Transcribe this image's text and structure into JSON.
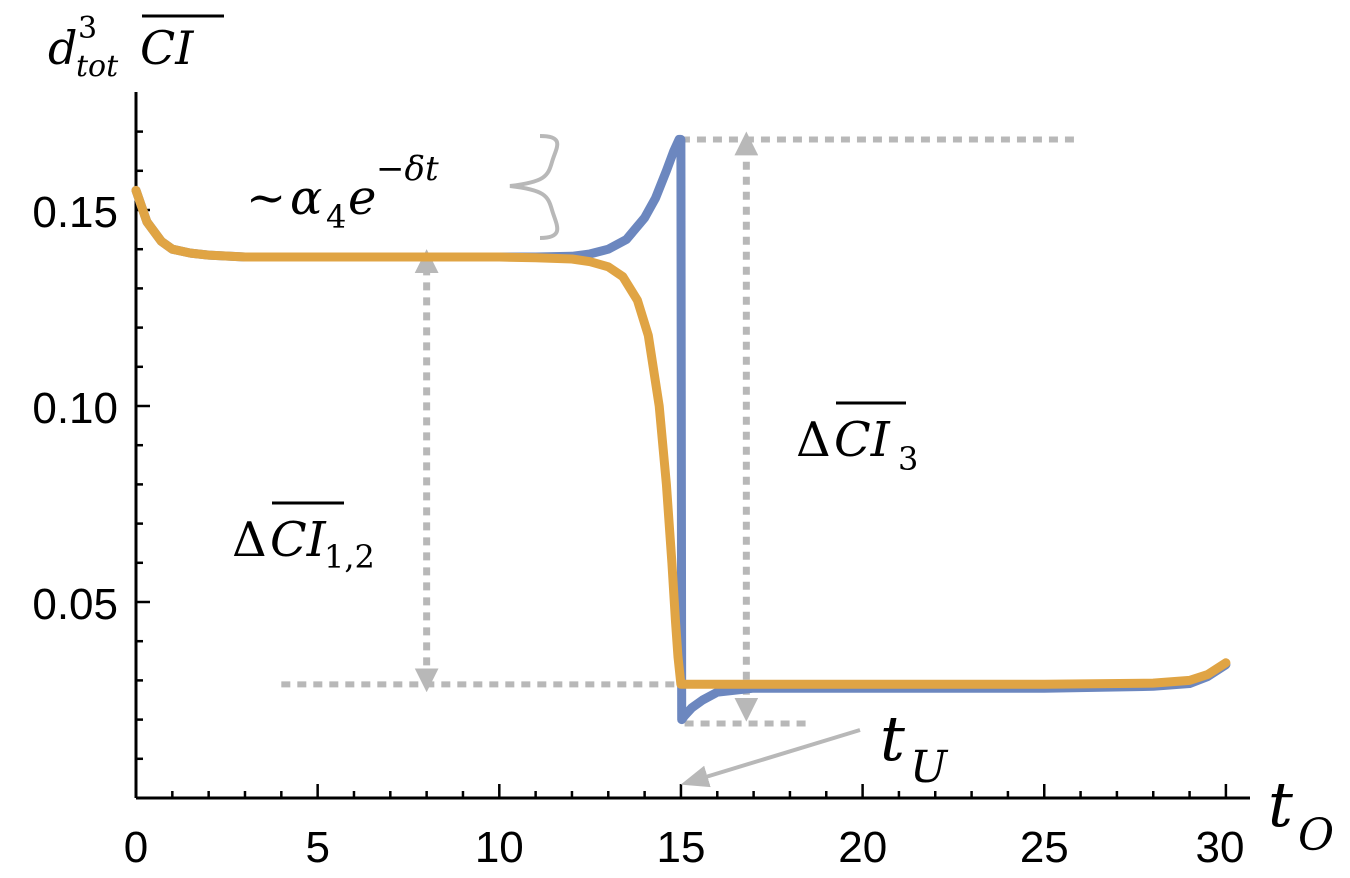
{
  "chart_data": {
    "type": "line",
    "title": "",
    "xlim": [
      0,
      30
    ],
    "ylim": [
      0,
      0.155
    ],
    "x_ticks": [
      "0",
      "5",
      "10",
      "15",
      "20",
      "25",
      "30"
    ],
    "y_ticks": [
      "0.05",
      "0.10",
      "0.15"
    ],
    "y_tick_values": [
      0.05,
      0.1,
      0.15
    ],
    "x_tick_values": [
      0,
      5,
      10,
      15,
      20,
      25,
      30
    ],
    "grid": false,
    "colors": {
      "blue": "#6c87bf",
      "orange": "#e0a444",
      "annotation": "#b8b8b8"
    },
    "series": [
      {
        "color": "blue",
        "x": [
          0,
          0.3,
          0.7,
          1,
          1.5,
          2,
          3,
          5,
          8,
          10,
          11,
          12,
          12.5,
          13,
          13.5,
          14,
          14.3,
          14.6,
          14.8,
          14.95,
          15.0,
          15.02,
          15.1,
          15.3,
          15.6,
          16,
          17,
          20,
          25,
          28,
          29,
          29.5,
          30
        ],
        "y": [
          0.155,
          0.147,
          0.142,
          0.14,
          0.139,
          0.1385,
          0.138,
          0.138,
          0.138,
          0.138,
          0.138,
          0.1382,
          0.1388,
          0.14,
          0.1425,
          0.148,
          0.153,
          0.16,
          0.165,
          0.168,
          0.168,
          0.02,
          0.021,
          0.023,
          0.025,
          0.027,
          0.028,
          0.028,
          0.028,
          0.0285,
          0.0292,
          0.031,
          0.034
        ]
      },
      {
        "color": "orange",
        "x": [
          0,
          0.3,
          0.7,
          1,
          1.5,
          2,
          3,
          5,
          8,
          10,
          11,
          12,
          12.5,
          13,
          13.4,
          13.8,
          14.1,
          14.4,
          14.6,
          14.75,
          14.85,
          14.92,
          15.0,
          15.5,
          17,
          20,
          25,
          28,
          29,
          29.5,
          30
        ],
        "y": [
          0.155,
          0.147,
          0.142,
          0.14,
          0.139,
          0.1385,
          0.138,
          0.138,
          0.138,
          0.138,
          0.1378,
          0.1375,
          0.1368,
          0.1355,
          0.133,
          0.127,
          0.118,
          0.1,
          0.08,
          0.06,
          0.045,
          0.036,
          0.029,
          0.029,
          0.029,
          0.029,
          0.029,
          0.0293,
          0.03,
          0.0315,
          0.0345
        ]
      }
    ],
    "reference_lines": [
      {
        "orientation": "horizontal",
        "y": 0.168,
        "x_from": 15,
        "x_to": 26
      },
      {
        "orientation": "horizontal",
        "y": 0.029,
        "x_from": 4,
        "x_to": 14.9
      },
      {
        "orientation": "horizontal",
        "y": 0.019,
        "x_from": 15.1,
        "x_to": 18.5
      }
    ],
    "arrows": [
      {
        "x": 8,
        "y_from": 0.029,
        "y_to": 0.138,
        "label": "ΔCI_{1,2}"
      },
      {
        "x": 16.8,
        "y_from": 0.0215,
        "y_to": 0.168,
        "label": "ΔCI_3"
      }
    ],
    "annotations": {
      "ylabel": {
        "base": "d",
        "sup": "3",
        "sub": "tot",
        "over": "CI"
      },
      "xlabel": {
        "base": "t",
        "sub": "O"
      },
      "decay": {
        "prefix": "~",
        "alpha": "α",
        "alpha_sub": "4",
        "e": "e",
        "exp": "−δt"
      },
      "delta12": {
        "delta": "Δ",
        "over": "CI",
        "sub": "1,2"
      },
      "delta3": {
        "delta": "Δ",
        "over": "CI",
        "sub": "3"
      },
      "tU": {
        "base": "t",
        "sub": "U",
        "points_to_x": 15
      }
    }
  }
}
